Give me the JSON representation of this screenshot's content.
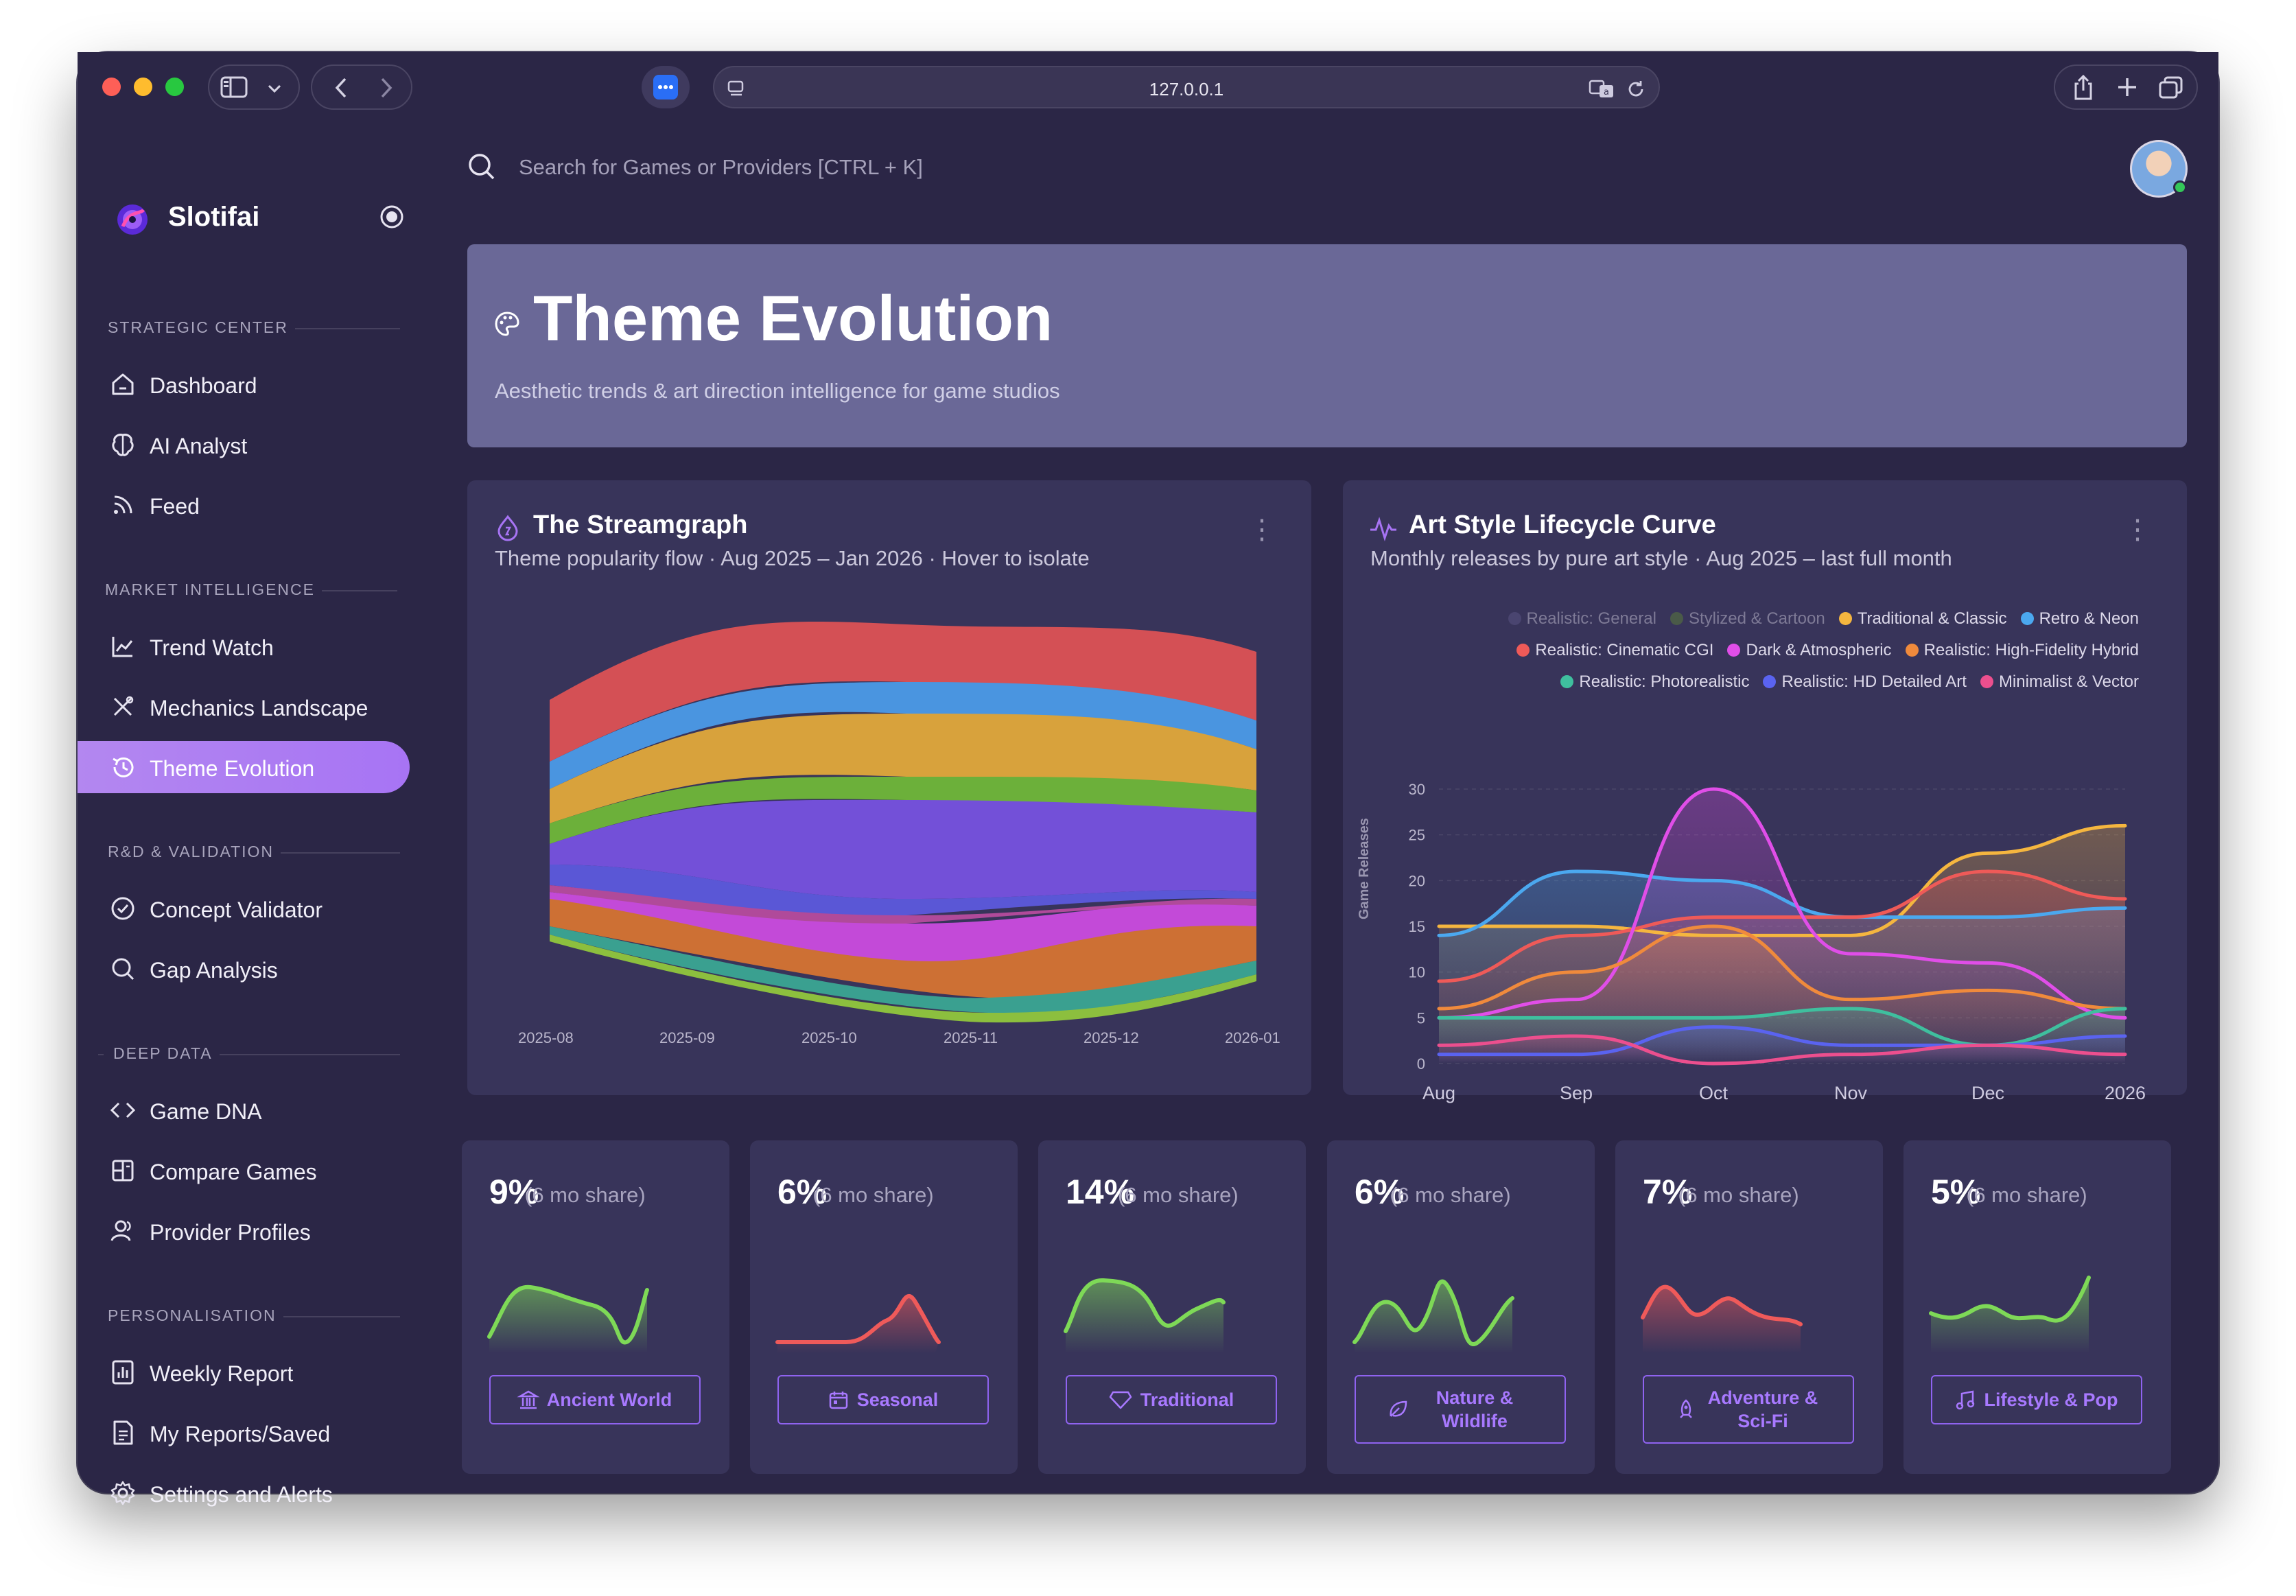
{
  "browser": {
    "url": "127.0.0.1"
  },
  "app": {
    "name": "Slotifai"
  },
  "search": {
    "placeholder": "Search for Games or Providers [CTRL + K]"
  },
  "sidebar": {
    "sections": [
      {
        "title": "STRATEGIC CENTER",
        "items": [
          "Dashboard",
          "AI Analyst",
          "Feed"
        ]
      },
      {
        "title": "MARKET INTELLIGENCE",
        "items": [
          "Trend Watch",
          "Mechanics Landscape",
          "Theme Evolution"
        ]
      },
      {
        "title": "R&D & VALIDATION",
        "items": [
          "Concept Validator",
          "Gap Analysis"
        ]
      },
      {
        "title": "DEEP DATA",
        "items": [
          "Game DNA",
          "Compare Games",
          "Provider Profiles"
        ]
      },
      {
        "title": "PERSONALISATION",
        "items": [
          "Weekly Report",
          "My Reports/Saved",
          "Settings and Alerts"
        ]
      }
    ],
    "active_item": "Theme Evolution"
  },
  "hero": {
    "title": "Theme Evolution",
    "subtitle": "Aesthetic trends & art direction intelligence for game studios"
  },
  "streamgraph": {
    "title": "The Streamgraph",
    "subtitle": "Theme popularity flow · Aug 2025 – Jan 2026 · Hover to isolate",
    "x_labels": [
      "2025-08",
      "2025-09",
      "2025-10",
      "2025-11",
      "2025-12",
      "2026-01"
    ]
  },
  "lifecycle": {
    "title": "Art Style Lifecycle Curve",
    "subtitle": "Monthly releases by pure art style · Aug 2025 – last full month",
    "ylabel": "Game Releases",
    "legend": [
      {
        "name": "Realistic: General",
        "color": "#4a4570",
        "muted": true
      },
      {
        "name": "Stylized & Cartoon",
        "color": "#4a5a48",
        "muted": true
      },
      {
        "name": "Traditional & Classic",
        "color": "#f5b63f",
        "muted": false
      },
      {
        "name": "Retro & Neon",
        "color": "#4ba8ef",
        "muted": false
      },
      {
        "name": "Realistic: Cinematic CGI",
        "color": "#ef5a58",
        "muted": false
      },
      {
        "name": "Dark & Atmospheric",
        "color": "#e04ee8",
        "muted": false
      },
      {
        "name": "Realistic: High-Fidelity Hybrid",
        "color": "#f08a3c",
        "muted": false
      },
      {
        "name": "Realistic: Photorealistic",
        "color": "#3fbf9e",
        "muted": false
      },
      {
        "name": "Realistic: HD Detailed Art",
        "color": "#5a63f0",
        "muted": false
      },
      {
        "name": "Minimalist & Vector",
        "color": "#ec4f8e",
        "muted": false
      }
    ]
  },
  "chart_data": [
    {
      "type": "area",
      "title": "The Streamgraph",
      "x": [
        "2025-08",
        "2025-09",
        "2025-10",
        "2025-11",
        "2025-12",
        "2026-01"
      ]
    },
    {
      "type": "line",
      "title": "Art Style Lifecycle Curve",
      "x": [
        "Aug",
        "Sep",
        "Oct",
        "Nov",
        "Dec",
        "2026"
      ],
      "ylabel": "Game Releases",
      "ylim": [
        0,
        30
      ],
      "yticks": [
        0,
        5,
        10,
        15,
        20,
        25,
        30
      ],
      "series": [
        {
          "name": "Traditional & Classic",
          "color": "#f5b63f",
          "values": [
            15,
            15,
            14,
            14,
            23,
            26
          ]
        },
        {
          "name": "Retro & Neon",
          "color": "#4ba8ef",
          "values": [
            14,
            21,
            20,
            16,
            16,
            17
          ]
        },
        {
          "name": "Realistic: Cinematic CGI",
          "color": "#ef5a58",
          "values": [
            9,
            14,
            16,
            16,
            21,
            18
          ]
        },
        {
          "name": "Dark & Atmospheric",
          "color": "#e04ee8",
          "values": [
            5,
            7,
            30,
            12,
            11,
            5
          ]
        },
        {
          "name": "Realistic: High-Fidelity Hybrid",
          "color": "#f08a3c",
          "values": [
            6,
            10,
            15,
            7,
            8,
            6
          ]
        },
        {
          "name": "Realistic: Photorealistic",
          "color": "#3fbf9e",
          "values": [
            5,
            5,
            5,
            6,
            2,
            6
          ]
        },
        {
          "name": "Realistic: HD Detailed Art",
          "color": "#5a63f0",
          "values": [
            1,
            1,
            4,
            2,
            2,
            3
          ]
        },
        {
          "name": "Minimalist & Vector",
          "color": "#ec4f8e",
          "values": [
            2,
            3,
            0,
            1,
            2,
            1
          ]
        }
      ]
    }
  ],
  "themes": [
    {
      "pct": "9%",
      "share": "(6 mo share)",
      "label": "Ancient World",
      "trend": "up",
      "icon": "temple-icon"
    },
    {
      "pct": "6%",
      "share": "(6 mo share)",
      "label": "Seasonal",
      "trend": "down",
      "icon": "calendar-icon"
    },
    {
      "pct": "14%",
      "share": "(6 mo share)",
      "label": "Traditional",
      "trend": "up",
      "icon": "heart-icon"
    },
    {
      "pct": "6%",
      "share": "(6 mo share)",
      "label": "Nature & Wildlife",
      "trend": "up",
      "icon": "leaf-icon"
    },
    {
      "pct": "7%",
      "share": "(6 mo share)",
      "label": "Adventure & Sci-Fi",
      "trend": "down",
      "icon": "rocket-icon"
    },
    {
      "pct": "5%",
      "share": "(6 mo share)",
      "label": "Lifestyle & Pop",
      "trend": "up",
      "icon": "music-icon"
    }
  ],
  "colors": {
    "accent": "#a774f4",
    "up": "#7ed957",
    "down": "#ef5a5a",
    "background": "#2b2646",
    "card": "#38345a"
  }
}
